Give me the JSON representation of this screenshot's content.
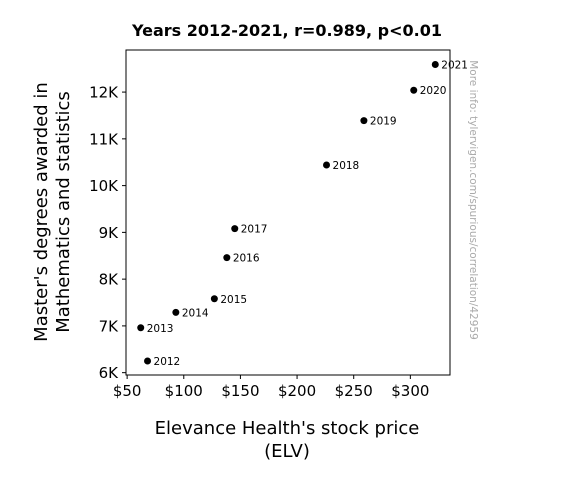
{
  "chart_data": {
    "type": "scatter",
    "title": "Years 2012-2021, r=0.989, p<0.01",
    "xlabel": [
      "Elevance Health's stock price",
      "(ELV)"
    ],
    "ylabel": [
      "Master's degrees awarded in",
      "Mathematics and statistics"
    ],
    "xlim": [
      49,
      335
    ],
    "ylim": [
      5950,
      12900
    ],
    "x_ticks": [
      {
        "value": 50,
        "label": "$50"
      },
      {
        "value": 100,
        "label": "$100"
      },
      {
        "value": 150,
        "label": "$150"
      },
      {
        "value": 200,
        "label": "$200"
      },
      {
        "value": 250,
        "label": "$250"
      },
      {
        "value": 300,
        "label": "$300"
      }
    ],
    "y_ticks": [
      {
        "value": 6000,
        "label": "6K"
      },
      {
        "value": 7000,
        "label": "7K"
      },
      {
        "value": 8000,
        "label": "8K"
      },
      {
        "value": 9000,
        "label": "9K"
      },
      {
        "value": 10000,
        "label": "10K"
      },
      {
        "value": 11000,
        "label": "11K"
      },
      {
        "value": 12000,
        "label": "12K"
      }
    ],
    "points": [
      {
        "label": "2012",
        "x": 68,
        "y": 6250
      },
      {
        "label": "2013",
        "x": 62,
        "y": 6960
      },
      {
        "label": "2014",
        "x": 93,
        "y": 7290
      },
      {
        "label": "2015",
        "x": 127,
        "y": 7580
      },
      {
        "label": "2016",
        "x": 138,
        "y": 8460
      },
      {
        "label": "2017",
        "x": 145,
        "y": 9080
      },
      {
        "label": "2018",
        "x": 226,
        "y": 10440
      },
      {
        "label": "2019",
        "x": 259,
        "y": 11390
      },
      {
        "label": "2020",
        "x": 303,
        "y": 12040
      },
      {
        "label": "2021",
        "x": 322,
        "y": 12590
      }
    ],
    "marker_color": "#000000",
    "grid": false,
    "legend": "none"
  },
  "watermark": "More info: tylervigen.com/spurious/correlation/42959"
}
